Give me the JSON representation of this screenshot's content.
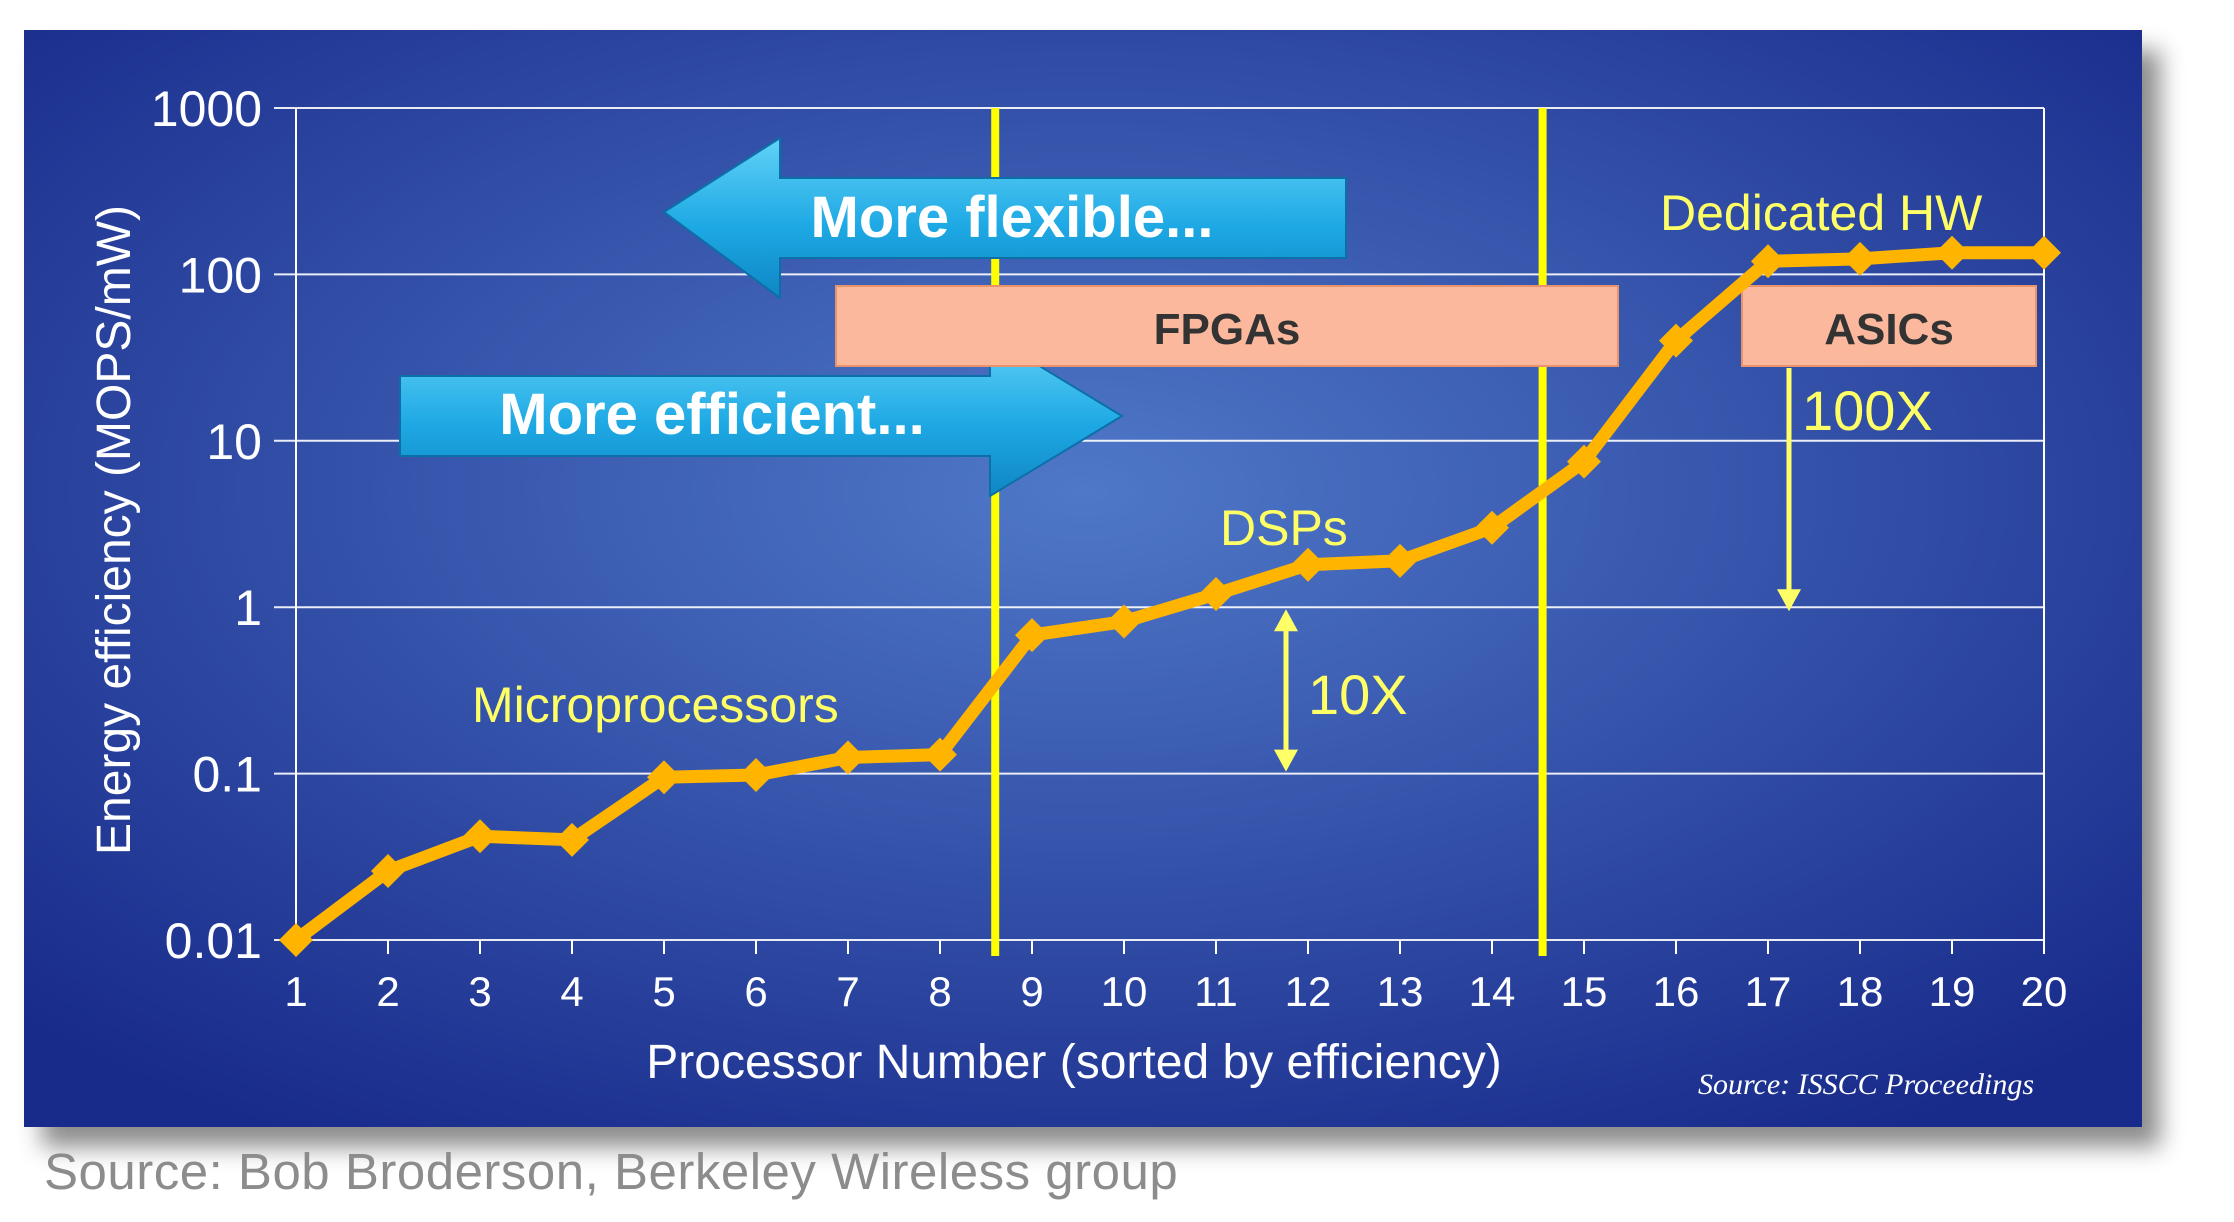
{
  "footer_source": "Source: Bob Broderson, Berkeley Wireless group",
  "colors": {
    "panel_dark": "#182a8a",
    "panel_light": "#4f78c8",
    "line": "#ffb400",
    "label_yellow": "#ffff66",
    "divider_yellow": "#ffff00",
    "box_fill": "#fbb89c",
    "arrow_fill": "#1ea9e4"
  },
  "chart_data": {
    "type": "line",
    "xlabel": "Processor Number (sorted by efficiency)",
    "ylabel": "Energy efficiency (MOPS/mW)",
    "y_scale": "log",
    "ylim": [
      0.01,
      1000
    ],
    "xlim": [
      1,
      20
    ],
    "x": [
      1,
      2,
      3,
      4,
      5,
      6,
      7,
      8,
      9,
      10,
      11,
      12,
      13,
      14,
      15,
      16,
      17,
      18,
      19,
      20
    ],
    "y": [
      0.01,
      0.026,
      0.042,
      0.04,
      0.095,
      0.098,
      0.125,
      0.13,
      0.68,
      0.82,
      1.2,
      1.8,
      1.9,
      3.0,
      7.5,
      40,
      120,
      124,
      135,
      135
    ],
    "x_tick_labels": [
      "1",
      "2",
      "3",
      "4",
      "5",
      "6",
      "7",
      "8",
      "9",
      "10",
      "11",
      "12",
      "13",
      "14",
      "15",
      "16",
      "17",
      "18",
      "19",
      "20"
    ],
    "y_tick_labels": [
      "0.01",
      "0.1",
      "1",
      "10",
      "100",
      "1000"
    ],
    "y_tick_values": [
      0.01,
      0.1,
      1,
      10,
      100,
      1000
    ],
    "grid": true,
    "dividers_x": [
      8.6,
      14.55
    ],
    "annotations": {
      "microprocessors": "Microprocessors",
      "dsps": "DSPs",
      "dedicated_hw": "Dedicated HW",
      "fpgas": "FPGAs",
      "asics": "ASICs",
      "more_flexible": "More flexible...",
      "more_efficient": "More efficient...",
      "tenx": "10X",
      "hundredx": "100X",
      "source": "Source: ISSCC Proceedings"
    }
  }
}
